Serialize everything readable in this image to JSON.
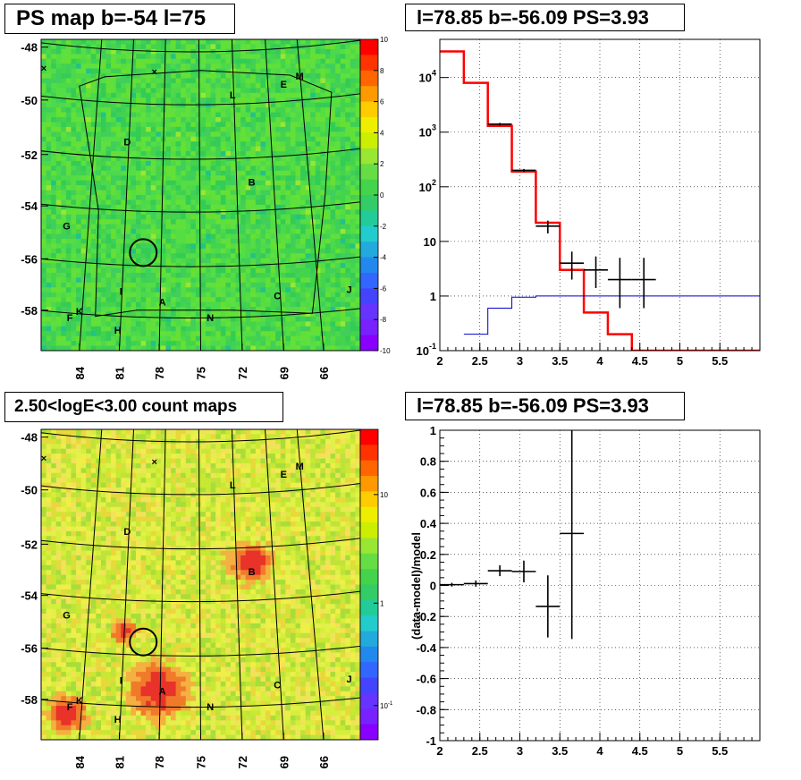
{
  "panels": {
    "ps_map": {
      "title": "PS map b=-54 l=75"
    },
    "spectrum": {
      "title": "l=78.85 b=-56.09 PS=3.93"
    },
    "count_map": {
      "title": "2.50<logE<3.00 count maps"
    },
    "residual": {
      "title": "l=78.85 b=-56.09 PS=3.93"
    }
  },
  "colors": {
    "data": "#000000",
    "model": "#ff0000",
    "background_model": "#0000cc",
    "ps_map_base": "#4cd94c",
    "count_map_base": "#d6ee3c",
    "source_hot": "#e8322a",
    "grid": "#000000"
  },
  "chart_data": [
    {
      "type": "heatmap",
      "title": "PS map b=-54 l=75",
      "x_ticks": [
        "84",
        "81",
        "78",
        "75",
        "72",
        "69",
        "66"
      ],
      "y_ticks": [
        "-48",
        "-50",
        "-52",
        "-54",
        "-56",
        "-58"
      ],
      "colorbar_ticks": [
        "10",
        "8",
        "6",
        "4",
        "2",
        "0",
        "-2",
        "-4",
        "-6",
        "-8",
        "-10"
      ],
      "colorbar_range": [
        -10,
        10
      ],
      "source_labels": [
        "M",
        "E",
        "L",
        "D",
        "B",
        "G",
        "I",
        "A",
        "C",
        "J",
        "K",
        "F",
        "H",
        "N"
      ],
      "marker": "circle"
    },
    {
      "type": "line",
      "title": "l=78.85 b=-56.09 PS=3.93",
      "xlim": [
        2,
        6
      ],
      "ylim": [
        0.1,
        50000
      ],
      "log_y": true,
      "grid": true,
      "x_ticks": [
        "2",
        "2.5",
        "3",
        "3.5",
        "4",
        "4.5",
        "5",
        "5.5"
      ],
      "y_ticks": [
        "10^-1",
        "1",
        "10",
        "10^2",
        "10^3",
        "10^4"
      ],
      "y_tick_parts": [
        {
          "base": "10",
          "exp": "-1"
        },
        {
          "base": "1",
          "exp": ""
        },
        {
          "base": "10",
          "exp": ""
        },
        {
          "base": "10",
          "exp": "2"
        },
        {
          "base": "10",
          "exp": "3"
        },
        {
          "base": "10",
          "exp": "4"
        }
      ],
      "series": [
        {
          "kind": "step",
          "role": "model",
          "edges": [
            2,
            2.3,
            2.6,
            2.9,
            3.2,
            3.5,
            3.8,
            4.1,
            4.4,
            4.7,
            5.0,
            5.3,
            5.6,
            5.9,
            6.0
          ],
          "values": [
            30000,
            8000,
            1300,
            190,
            22,
            3.0,
            0.5,
            0.2,
            0.1,
            0.1,
            0.1,
            0.1,
            0.1,
            0.1
          ]
        },
        {
          "kind": "step",
          "role": "background",
          "edges": [
            2.3,
            2.6,
            2.9,
            3.2,
            3.5,
            3.8,
            4.1,
            4.4,
            4.7,
            5.0,
            5.3,
            5.6,
            5.9,
            6.0
          ],
          "values": [
            0.2,
            0.6,
            0.95,
            1.0,
            1.0,
            1.0,
            1.0,
            1.0,
            1.0,
            1.0,
            1.0,
            1.0,
            1.0
          ]
        },
        {
          "kind": "errorbar",
          "role": "data",
          "points": [
            {
              "x": 2.75,
              "xerr": 0.15,
              "y": 1400,
              "ylo": 1320,
              "yhi": 1480
            },
            {
              "x": 3.05,
              "xerr": 0.15,
              "y": 200,
              "ylo": 188,
              "yhi": 212
            },
            {
              "x": 3.35,
              "xerr": 0.15,
              "y": 19,
              "ylo": 14,
              "yhi": 24
            },
            {
              "x": 3.65,
              "xerr": 0.15,
              "y": 4,
              "ylo": 2,
              "yhi": 6.5
            },
            {
              "x": 3.95,
              "xerr": 0.15,
              "y": 3,
              "ylo": 1.4,
              "yhi": 5.3
            },
            {
              "x": 4.25,
              "xerr": 0.15,
              "y": 2,
              "ylo": 0.6,
              "yhi": 5.0
            },
            {
              "x": 4.55,
              "xerr": 0.15,
              "y": 2,
              "ylo": 0.6,
              "yhi": 5.0
            }
          ]
        }
      ]
    },
    {
      "type": "heatmap",
      "title": "2.50<logE<3.00 count maps",
      "x_ticks": [
        "84",
        "81",
        "78",
        "75",
        "72",
        "69",
        "66"
      ],
      "y_ticks": [
        "-48",
        "-50",
        "-52",
        "-54",
        "-56",
        "-58"
      ],
      "colorbar_ticks": [
        "10",
        "1",
        "10^-1"
      ],
      "colorbar_tick_parts": [
        {
          "base": "10",
          "exp": ""
        },
        {
          "base": "1",
          "exp": ""
        },
        {
          "base": "10",
          "exp": "-1"
        }
      ],
      "colorbar_log": true,
      "source_labels": [
        "M",
        "E",
        "L",
        "D",
        "B",
        "G",
        "I",
        "A",
        "C",
        "J",
        "K",
        "F",
        "H",
        "N"
      ],
      "marker": "circle"
    },
    {
      "type": "scatter",
      "title": "l=78.85 b=-56.09 PS=3.93",
      "ylabel": "(data-model)/model",
      "xlim": [
        2,
        6
      ],
      "ylim": [
        -1,
        1
      ],
      "grid": true,
      "x_ticks": [
        "2",
        "2.5",
        "3",
        "3.5",
        "4",
        "4.5",
        "5",
        "5.5"
      ],
      "y_ticks": [
        "1",
        "0.8",
        "0.6",
        "0.4",
        "0.2",
        "0",
        "-0.2",
        "-0.4",
        "-0.6",
        "-0.8",
        "-1"
      ],
      "points": [
        {
          "x": 2.15,
          "xerr": 0.15,
          "y": 0.005,
          "yerr": 0.012
        },
        {
          "x": 2.45,
          "xerr": 0.15,
          "y": 0.012,
          "yerr": 0.02
        },
        {
          "x": 2.75,
          "xerr": 0.15,
          "y": 0.095,
          "yerr": 0.035
        },
        {
          "x": 3.05,
          "xerr": 0.15,
          "y": 0.09,
          "yerr": 0.07
        },
        {
          "x": 3.35,
          "xerr": 0.15,
          "y": -0.135,
          "yerr": 0.2
        },
        {
          "x": 3.65,
          "xerr": 0.15,
          "y": 0.335,
          "yerr": 0.68
        }
      ]
    }
  ]
}
